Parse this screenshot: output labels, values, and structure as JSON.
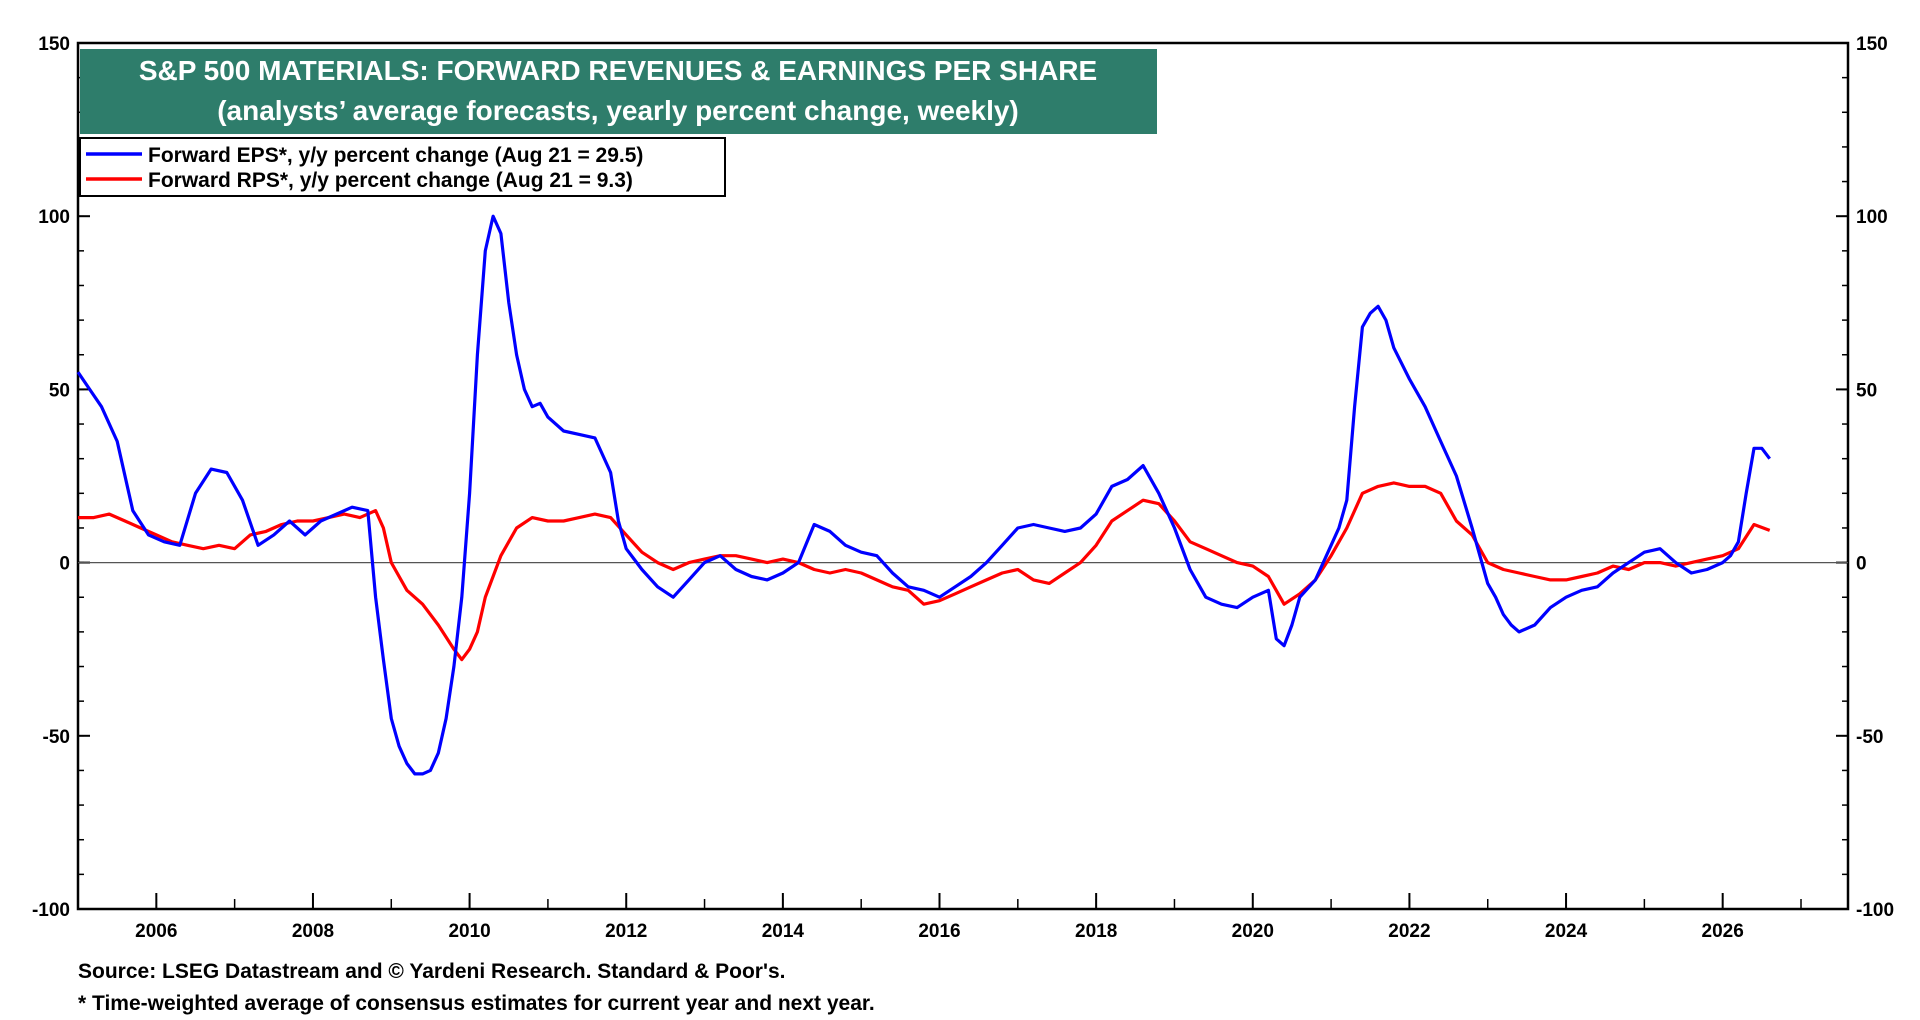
{
  "chart_data": {
    "type": "line",
    "title": "S&P 500 MATERIALS: FORWARD REVENUES & EARNINGS PER SHARE",
    "subtitle": "(analysts’ average forecasts, yearly percent change, weekly)",
    "xlabel": "",
    "ylabel": "",
    "xlim": [
      2005.0,
      2027.6
    ],
    "ylim": [
      -100,
      150
    ],
    "y_ticks": [
      150,
      100,
      50,
      0,
      -50,
      -100
    ],
    "y_tick_labels": [
      "150",
      "100",
      "50",
      "0",
      "-50",
      "-100"
    ],
    "x_ticks": [
      2006,
      2008,
      2010,
      2012,
      2014,
      2016,
      2018,
      2020,
      2022,
      2024,
      2026
    ],
    "x_tick_labels": [
      "2006",
      "2008",
      "2010",
      "2012",
      "2014",
      "2016",
      "2018",
      "2020",
      "2022",
      "2024",
      "2026"
    ],
    "dual_y_axis": true,
    "zero_line": true,
    "grid": false,
    "legend_position": "top-left",
    "series": [
      {
        "name": "Forward EPS*, y/y percent change (Aug 21 = 29.5)",
        "color": "#0000ff",
        "x": [
          2005.0,
          2005.15,
          2005.3,
          2005.5,
          2005.7,
          2005.9,
          2006.1,
          2006.3,
          2006.5,
          2006.7,
          2006.9,
          2007.1,
          2007.3,
          2007.5,
          2007.7,
          2007.9,
          2008.1,
          2008.3,
          2008.5,
          2008.7,
          2008.8,
          2008.9,
          2009.0,
          2009.1,
          2009.2,
          2009.3,
          2009.4,
          2009.5,
          2009.6,
          2009.7,
          2009.8,
          2009.9,
          2010.0,
          2010.1,
          2010.2,
          2010.3,
          2010.4,
          2010.5,
          2010.6,
          2010.7,
          2010.8,
          2010.9,
          2011.0,
          2011.2,
          2011.4,
          2011.6,
          2011.8,
          2011.9,
          2012.0,
          2012.1,
          2012.2,
          2012.4,
          2012.6,
          2012.8,
          2013.0,
          2013.2,
          2013.4,
          2013.6,
          2013.8,
          2014.0,
          2014.2,
          2014.4,
          2014.6,
          2014.8,
          2015.0,
          2015.2,
          2015.4,
          2015.6,
          2015.8,
          2016.0,
          2016.2,
          2016.4,
          2016.6,
          2016.8,
          2017.0,
          2017.2,
          2017.4,
          2017.6,
          2017.8,
          2018.0,
          2018.2,
          2018.4,
          2018.6,
          2018.8,
          2019.0,
          2019.2,
          2019.4,
          2019.6,
          2019.8,
          2020.0,
          2020.2,
          2020.3,
          2020.4,
          2020.5,
          2020.6,
          2020.8,
          2021.0,
          2021.1,
          2021.2,
          2021.3,
          2021.4,
          2021.5,
          2021.6,
          2021.7,
          2021.8,
          2022.0,
          2022.2,
          2022.4,
          2022.6,
          2022.8,
          2023.0,
          2023.1,
          2023.2,
          2023.3,
          2023.4,
          2023.6,
          2023.8,
          2024.0,
          2024.2,
          2024.4,
          2024.6,
          2024.8,
          2025.0,
          2025.2,
          2025.4,
          2025.6,
          2025.8,
          2026.0,
          2026.1,
          2026.2,
          2026.3,
          2026.4,
          2026.5,
          2026.6
        ],
        "y": [
          55,
          50,
          45,
          35,
          15,
          8,
          6,
          5,
          20,
          27,
          26,
          18,
          5,
          8,
          12,
          8,
          12,
          14,
          16,
          15,
          -10,
          -28,
          -45,
          -53,
          -58,
          -61,
          -61,
          -60,
          -55,
          -45,
          -30,
          -10,
          20,
          60,
          90,
          100,
          95,
          75,
          60,
          50,
          45,
          46,
          42,
          38,
          37,
          36,
          26,
          12,
          4,
          1,
          -2,
          -7,
          -10,
          -5,
          0,
          2,
          -2,
          -4,
          -5,
          -3,
          0,
          11,
          9,
          5,
          3,
          2,
          -3,
          -7,
          -8,
          -10,
          -7,
          -4,
          0,
          5,
          10,
          11,
          10,
          9,
          10,
          14,
          22,
          24,
          28,
          20,
          10,
          -2,
          -10,
          -12,
          -13,
          -10,
          -8,
          -22,
          -24,
          -18,
          -10,
          -5,
          5,
          10,
          18,
          45,
          68,
          72,
          74,
          70,
          62,
          53,
          45,
          35,
          25,
          10,
          -6,
          -10,
          -15,
          -18,
          -20,
          -18,
          -13,
          -10,
          -8,
          -7,
          -3,
          0,
          3,
          4,
          0,
          -3,
          -2,
          0,
          2,
          6,
          20,
          33,
          33,
          30
        ]
      },
      {
        "name": "Forward RPS*, y/y percent change (Aug 21 = 9.3)",
        "color": "#ff0000",
        "x": [
          2005.0,
          2005.2,
          2005.4,
          2005.6,
          2005.8,
          2006.0,
          2006.2,
          2006.4,
          2006.6,
          2006.8,
          2007.0,
          2007.2,
          2007.4,
          2007.6,
          2007.8,
          2008.0,
          2008.2,
          2008.4,
          2008.6,
          2008.8,
          2008.9,
          2009.0,
          2009.2,
          2009.4,
          2009.6,
          2009.8,
          2009.9,
          2010.0,
          2010.1,
          2010.2,
          2010.4,
          2010.6,
          2010.8,
          2011.0,
          2011.2,
          2011.4,
          2011.6,
          2011.8,
          2012.0,
          2012.2,
          2012.4,
          2012.6,
          2012.8,
          2013.0,
          2013.2,
          2013.4,
          2013.6,
          2013.8,
          2014.0,
          2014.2,
          2014.4,
          2014.6,
          2014.8,
          2015.0,
          2015.2,
          2015.4,
          2015.6,
          2015.8,
          2016.0,
          2016.2,
          2016.4,
          2016.6,
          2016.8,
          2017.0,
          2017.2,
          2017.4,
          2017.6,
          2017.8,
          2018.0,
          2018.2,
          2018.4,
          2018.6,
          2018.8,
          2019.0,
          2019.2,
          2019.4,
          2019.6,
          2019.8,
          2020.0,
          2020.2,
          2020.4,
          2020.6,
          2020.8,
          2021.0,
          2021.2,
          2021.4,
          2021.6,
          2021.8,
          2022.0,
          2022.2,
          2022.4,
          2022.6,
          2022.8,
          2023.0,
          2023.2,
          2023.4,
          2023.6,
          2023.8,
          2024.0,
          2024.2,
          2024.4,
          2024.6,
          2024.8,
          2025.0,
          2025.2,
          2025.4,
          2025.6,
          2025.8,
          2026.0,
          2026.2,
          2026.4,
          2026.6
        ],
        "y": [
          13,
          13,
          14,
          12,
          10,
          8,
          6,
          5,
          4,
          5,
          4,
          8,
          9,
          11,
          12,
          12,
          13,
          14,
          13,
          15,
          10,
          0,
          -8,
          -12,
          -18,
          -25,
          -28,
          -25,
          -20,
          -10,
          2,
          10,
          13,
          12,
          12,
          13,
          14,
          13,
          8,
          3,
          0,
          -2,
          0,
          1,
          2,
          2,
          1,
          0,
          1,
          0,
          -2,
          -3,
          -2,
          -3,
          -5,
          -7,
          -8,
          -12,
          -11,
          -9,
          -7,
          -5,
          -3,
          -2,
          -5,
          -6,
          -3,
          0,
          5,
          12,
          15,
          18,
          17,
          12,
          6,
          4,
          2,
          0,
          -1,
          -4,
          -12,
          -9,
          -5,
          2,
          10,
          20,
          22,
          23,
          22,
          22,
          20,
          12,
          8,
          0,
          -2,
          -3,
          -4,
          -5,
          -5,
          -4,
          -3,
          -1,
          -2,
          0,
          0,
          -1,
          0,
          1,
          2,
          4,
          11,
          9.3
        ]
      }
    ]
  },
  "footnotes": {
    "source": "Source: LSEG Datastream and © Yardeni Research. Standard & Poor's.",
    "note": "* Time-weighted average of consensus estimates for current year and next year."
  }
}
